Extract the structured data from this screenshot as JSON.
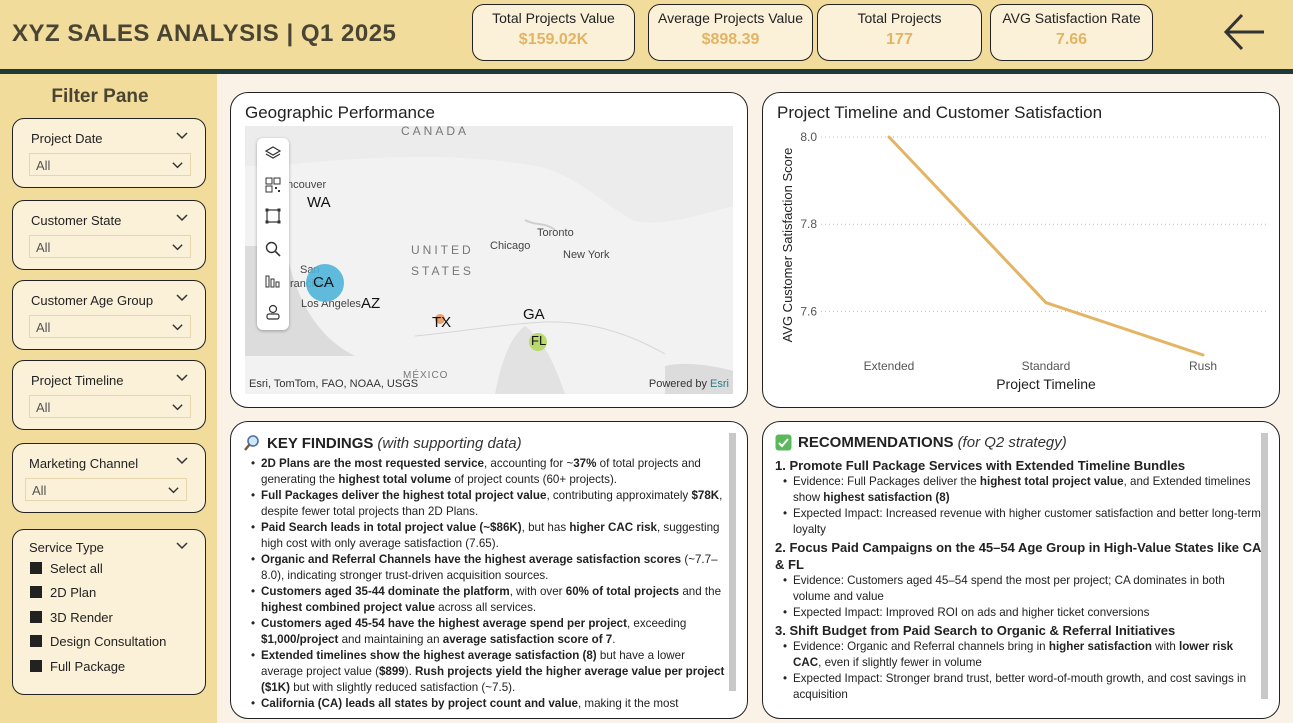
{
  "header": {
    "title": "XYZ SALES ANALYSIS | Q1 2025",
    "kpis": [
      {
        "label": "Total Projects Value",
        "value": "$159.02K"
      },
      {
        "label": "Average Projects Value",
        "value": "$898.39"
      },
      {
        "label": "Total Projects",
        "value": "177"
      },
      {
        "label": "AVG Satisfaction Rate",
        "value": "7.66"
      }
    ]
  },
  "filters": {
    "title": "Filter Pane",
    "slicers": [
      {
        "label": "Project Date",
        "value": "All"
      },
      {
        "label": "Customer State",
        "value": "All"
      },
      {
        "label": "Customer Age Group",
        "value": "All"
      },
      {
        "label": "Project Timeline",
        "value": "All"
      },
      {
        "label": "Marketing Channel",
        "value": "All"
      }
    ],
    "service_type": {
      "label": "Service Type",
      "items": [
        "Select all",
        "2D Plan",
        "3D Render",
        "Design Consultation",
        "Full Package"
      ]
    }
  },
  "map": {
    "title": "Geographic Performance",
    "labels": {
      "canada": "CANADA",
      "us1": "UNITED",
      "us2": "STATES",
      "mexico": "MÉXICO",
      "vancouver": "ncouver",
      "san": "San",
      "francisco": "rancisco",
      "la": "Los Angeles",
      "chicago": "Chicago",
      "toronto": "Toronto",
      "newyork": "New York"
    },
    "states": {
      "wa": "WA",
      "ca": "CA",
      "az": "AZ",
      "tx": "TX",
      "ga": "GA",
      "fl": "FL"
    },
    "attribution": "Esri, TomTom, FAO, NOAA, USGS",
    "powered_by": "Powered by",
    "powered_brand": "Esri"
  },
  "chart_data": {
    "type": "line",
    "title": "Project Timeline and Customer Satisfaction",
    "xlabel": "Project Timeline",
    "ylabel": "AVG Customer Satisfaction Score",
    "categories": [
      "Extended",
      "Standard",
      "Rush"
    ],
    "values": [
      8.0,
      7.62,
      7.5
    ],
    "yticks": [
      "8.0",
      "7.8",
      "7.6"
    ],
    "ylim": [
      7.5,
      8.0
    ],
    "grid": true,
    "color": "#e3b464"
  },
  "findings": {
    "title": "KEY FINDINGS",
    "subtitle": "(with supporting data)",
    "icon": "magnifier-icon"
  },
  "recommendations": {
    "title": "RECOMMENDATIONS",
    "subtitle": "(for Q2 strategy)",
    "icon": "checkmark-icon",
    "items": [
      {
        "heading": "1. Promote Full Package Services with Extended Timeline Bundles",
        "evidence_prefix": "Evidence: Full Packages deliver the ",
        "evidence_b1": "highest total project value",
        "evidence_mid": ", and Extended timelines show ",
        "evidence_b2": "highest satisfaction (8)",
        "impact": "Expected Impact: Increased revenue with higher customer satisfaction and better long-term loyalty"
      },
      {
        "heading": "2. Focus Paid Campaigns on the 45–54 Age Group in High-Value States like CA & FL",
        "evidence": "Evidence: Customers aged 45–54 spend the most per project; CA dominates in both volume and value",
        "impact": "Expected Impact: Improved ROI on ads and higher ticket conversions"
      },
      {
        "heading": "3. Shift Budget from Paid Search to Organic & Referral Initiatives",
        "evidence_prefix": "Evidence: Organic and Referral channels bring in ",
        "evidence_b1": "higher satisfaction",
        "evidence_mid": " with ",
        "evidence_b2": "lower risk CAC",
        "evidence_suffix": ", even if slightly fewer in volume",
        "impact": "Expected Impact: Stronger brand trust, better word-of-mouth growth, and cost savings in acquisition"
      }
    ]
  }
}
